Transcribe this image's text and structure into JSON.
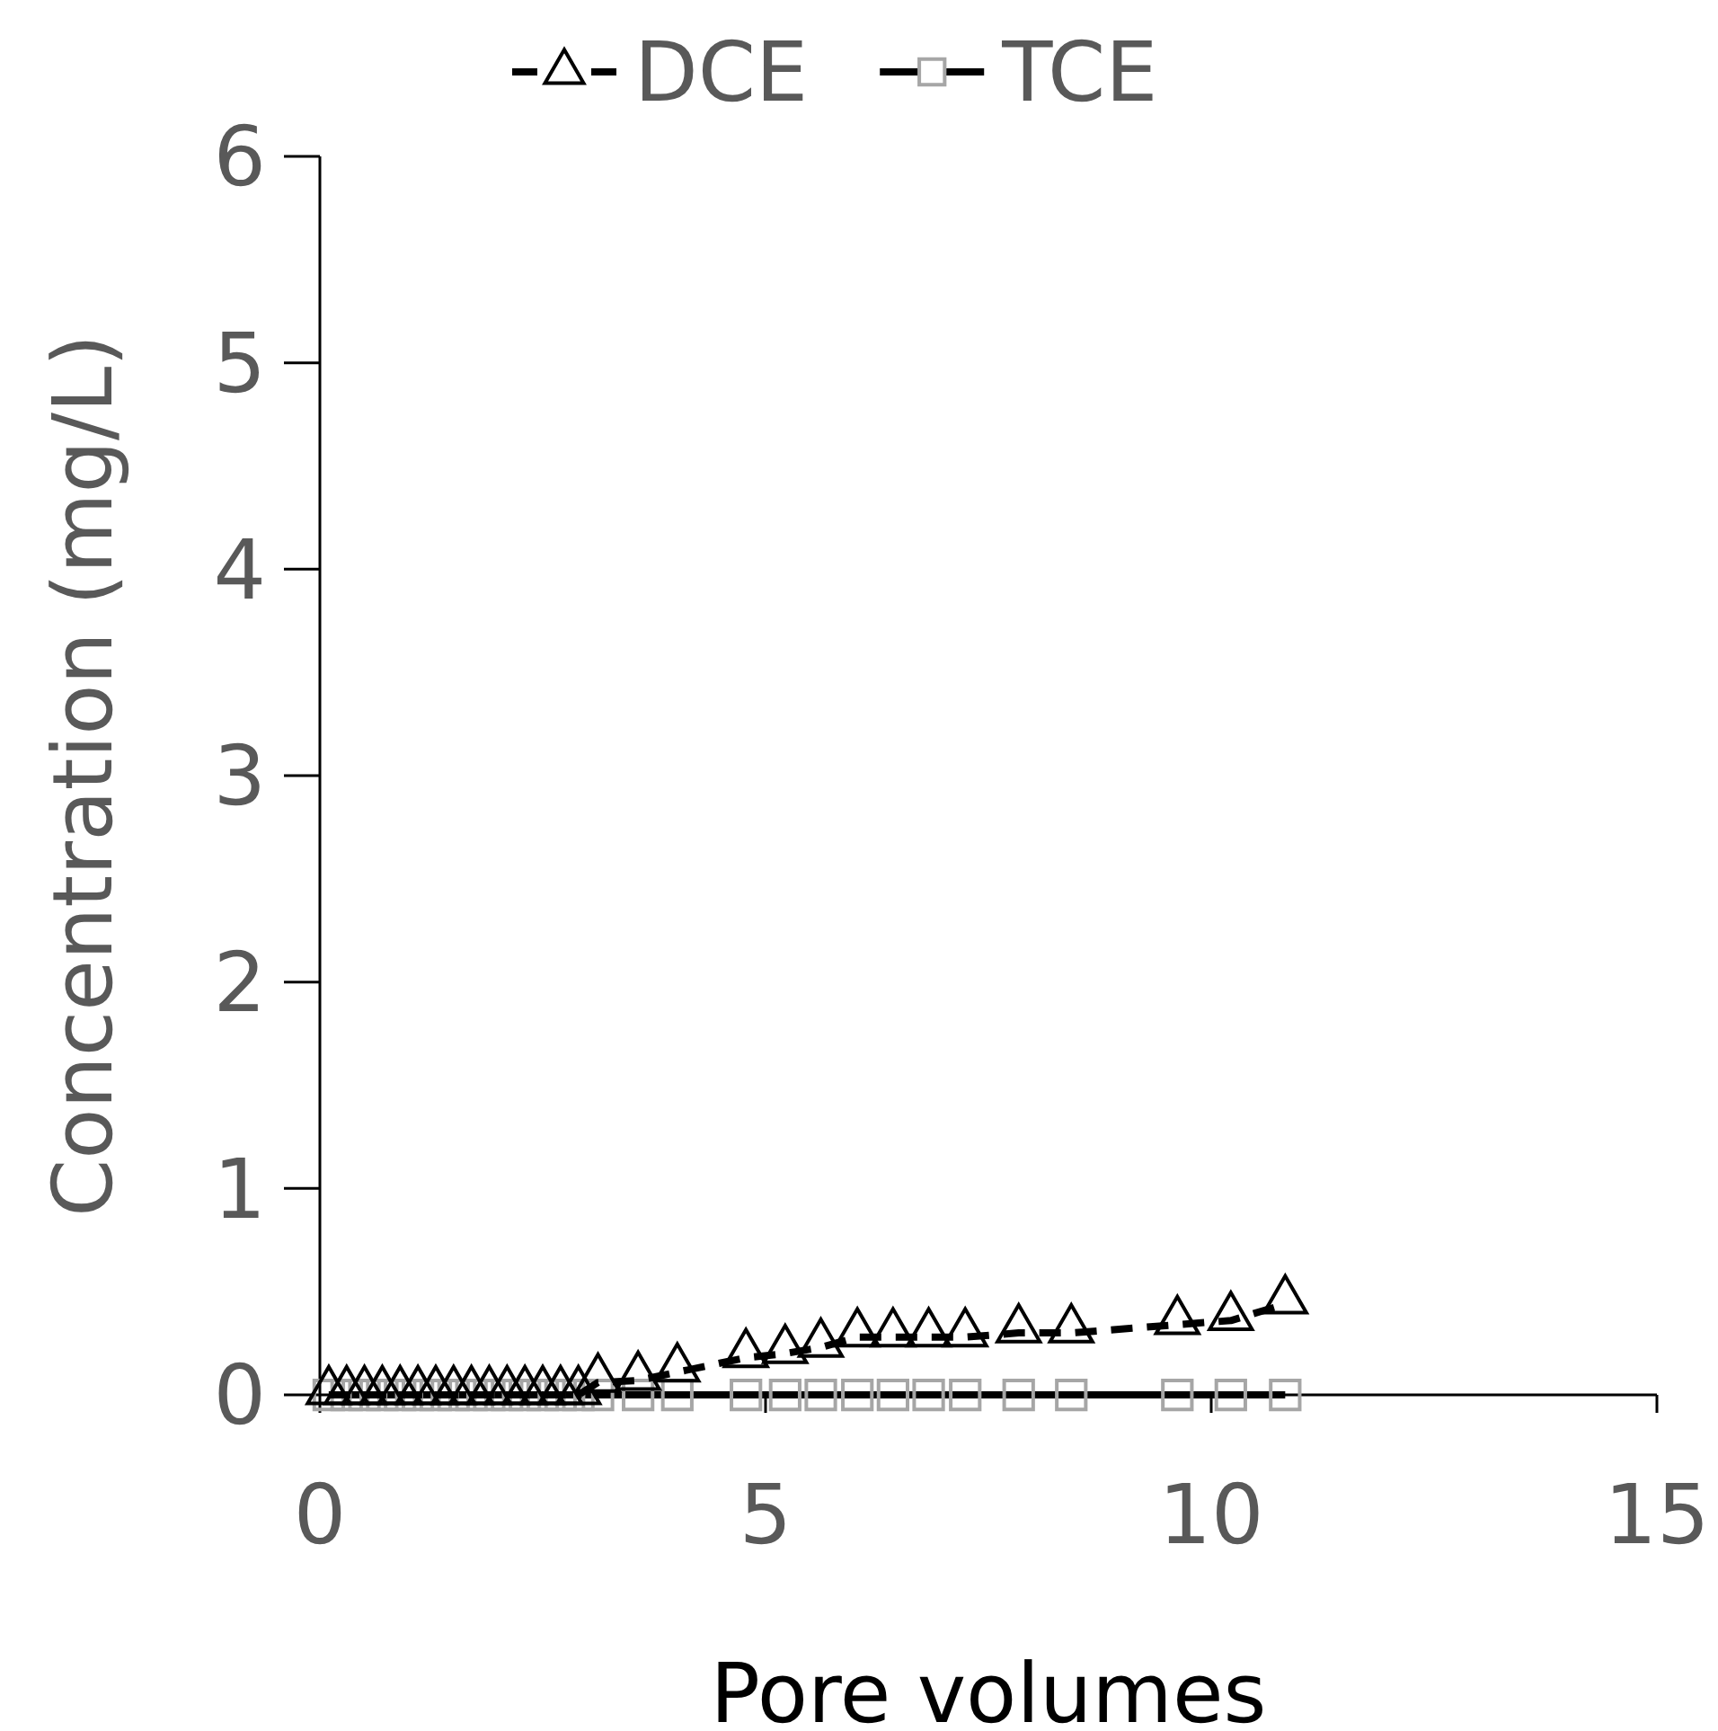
{
  "chart_data": {
    "type": "line",
    "xlabel": "Pore volumes",
    "ylabel": "Concentration (mg/L)",
    "xlim": [
      0,
      15
    ],
    "xticks": [
      0,
      5,
      10,
      15
    ],
    "ylim": [
      0,
      6
    ],
    "yticks": [
      0,
      1,
      2,
      3,
      4,
      5,
      6
    ],
    "grid": false,
    "legend": "top",
    "x": [
      0.1,
      0.3,
      0.5,
      0.7,
      0.9,
      1.1,
      1.3,
      1.5,
      1.7,
      1.9,
      2.1,
      2.3,
      2.5,
      2.7,
      2.9,
      3.12,
      3.57,
      4.01,
      4.78,
      5.22,
      5.62,
      6.03,
      6.43,
      6.83,
      7.24,
      7.84,
      8.43,
      9.62,
      10.22,
      10.83
    ],
    "series": [
      {
        "name": "DCE",
        "color": "#000000",
        "marker": "triangle",
        "line_style": "dashed",
        "values": [
          0,
          0,
          0,
          0,
          0,
          0,
          0,
          0,
          0,
          0,
          0,
          0,
          0,
          0,
          0,
          0.06,
          0.07,
          0.11,
          0.18,
          0.2,
          0.23,
          0.28,
          0.28,
          0.28,
          0.28,
          0.3,
          0.3,
          0.34,
          0.36,
          0.44
        ]
      },
      {
        "name": "TCE",
        "color": "#a6a6a6",
        "marker": "square",
        "line_style": "solid",
        "values": [
          0,
          0,
          0,
          0,
          0,
          0,
          0,
          0,
          0,
          0,
          0,
          0,
          0,
          0,
          0,
          0,
          0,
          0,
          0,
          0,
          0,
          0,
          0,
          0,
          0,
          0,
          0,
          0,
          0,
          0
        ]
      }
    ]
  }
}
